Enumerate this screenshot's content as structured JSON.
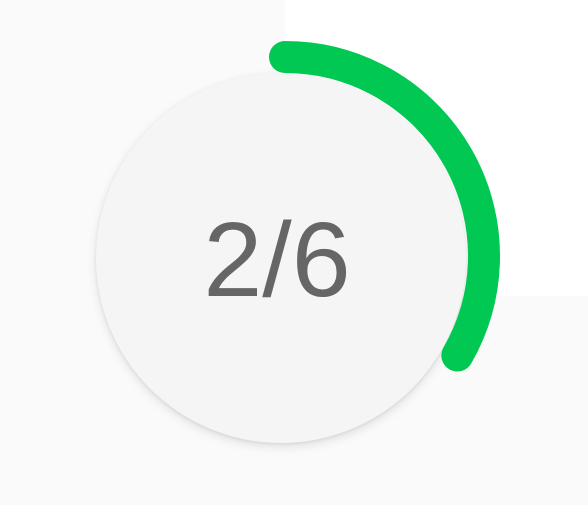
{
  "progress": {
    "text": "2/6",
    "current": 2,
    "total": 6,
    "fraction": 0.3333
  },
  "colors": {
    "accent": "#00c853",
    "circle_fill": "#f5f5f5",
    "text": "#666666",
    "background": "#fafafa"
  }
}
